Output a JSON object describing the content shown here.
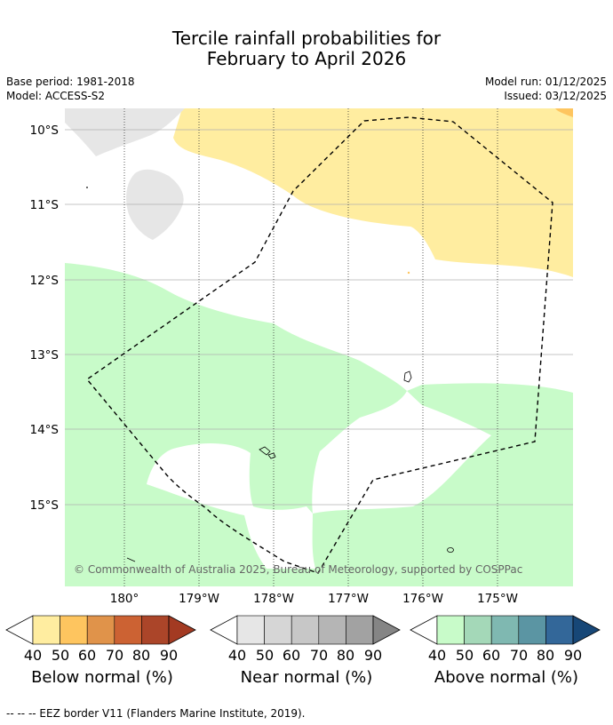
{
  "title": {
    "line1": "Tercile rainfall probabilities for",
    "line2": "February to April 2026"
  },
  "meta": {
    "base_period": "Base period: 1981-2018",
    "model": "Model: ACCESS-S2",
    "model_run": "Model run: 01/12/2025",
    "issued": "Issued: 03/12/2025"
  },
  "map": {
    "lat_labels": [
      "10°S",
      "11°S",
      "12°S",
      "13°S",
      "14°S",
      "15°S"
    ],
    "lon_labels": [
      "180°",
      "179°W",
      "178°W",
      "177°W",
      "176°W",
      "175°W"
    ],
    "copyright": "© Commonwealth of Australia 2025, Bureau of Meteorology, supported by COSPPac"
  },
  "colorbars": [
    {
      "label": "Below normal (%)",
      "ticks": [
        "40",
        "50",
        "60",
        "70",
        "80",
        "90"
      ],
      "colors": [
        "#ffeda0",
        "#fec55f",
        "#e0934a",
        "#cc6233",
        "#ab4529",
        "#a33a22"
      ]
    },
    {
      "label": "Near normal (%)",
      "ticks": [
        "40",
        "50",
        "60",
        "70",
        "80",
        "90"
      ],
      "colors": [
        "#e6e6e6",
        "#d6d6d6",
        "#c7c7c7",
        "#b5b5b5",
        "#a2a2a2",
        "#858585"
      ]
    },
    {
      "label": "Above normal (%)",
      "ticks": [
        "40",
        "50",
        "60",
        "70",
        "80",
        "90"
      ],
      "colors": [
        "#c8fbc9",
        "#a4d8b8",
        "#7fb8b1",
        "#5b95a3",
        "#336799",
        "#174777"
      ]
    }
  ],
  "footnote": "--  --  -- EEZ border V11 (Flanders Marine Institute, 2019)."
}
